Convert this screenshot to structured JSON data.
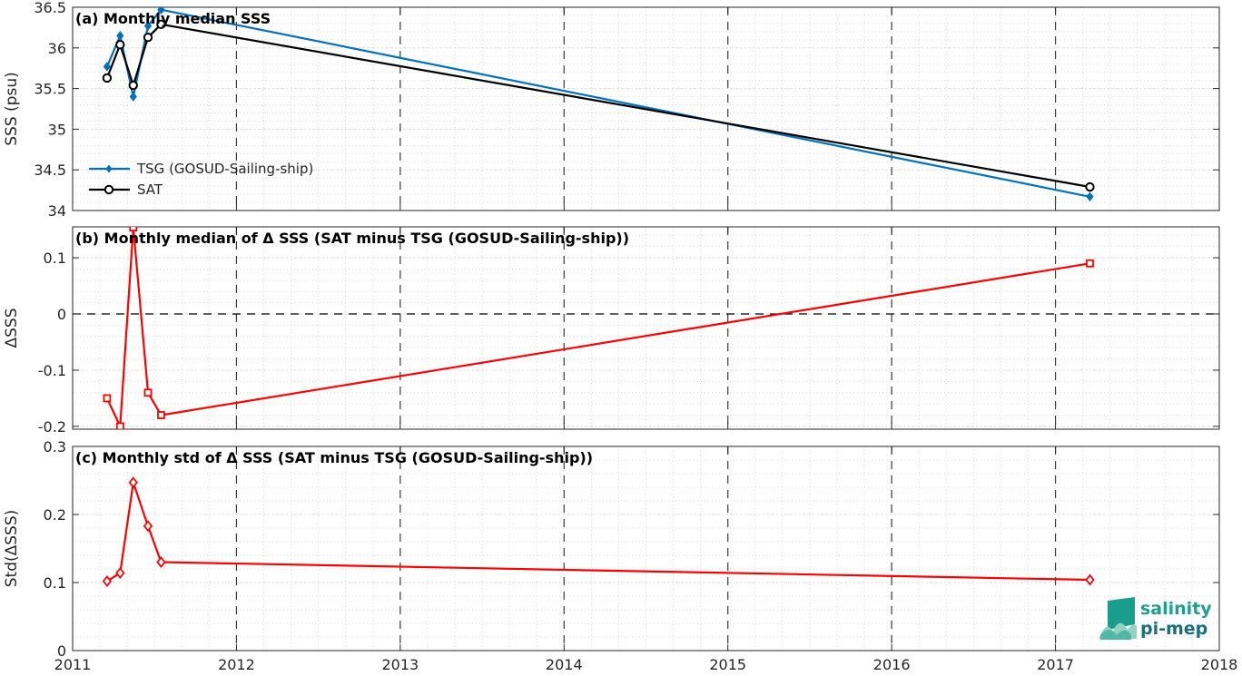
{
  "figure": {
    "logo": {
      "line1": "salinity",
      "line2": "pi-mep"
    }
  },
  "chart_data": [
    {
      "type": "line",
      "title": "(a) Monthly median SSS",
      "xlabel": "",
      "ylabel": "SSS (psu)",
      "xlim": [
        2011,
        2018
      ],
      "ylim": [
        34,
        36.5
      ],
      "xticks": [
        "2011",
        "2012",
        "2013",
        "2014",
        "2015",
        "2016",
        "2017",
        "2018"
      ],
      "yticks": [
        "34",
        "34.5",
        "35",
        "35.5",
        "36",
        "36.5"
      ],
      "grid": true,
      "legend_position": "bottom-left",
      "series": [
        {
          "name": "TSG (GOSUD-Sailing-ship)",
          "color": "#0072BD",
          "marker": "diamond-filled",
          "x": [
            2011.21,
            2011.29,
            2011.37,
            2011.46,
            2011.54,
            2017.21
          ],
          "y": [
            35.77,
            36.15,
            35.4,
            36.27,
            36.47,
            34.17
          ]
        },
        {
          "name": "SAT",
          "color": "#000000",
          "marker": "circle-open",
          "x": [
            2011.21,
            2011.29,
            2011.37,
            2011.46,
            2011.54,
            2017.21
          ],
          "y": [
            35.63,
            36.04,
            35.54,
            36.13,
            36.29,
            34.29
          ]
        }
      ]
    },
    {
      "type": "line",
      "title": "(b) Monthly median of Δ SSS (SAT minus TSG (GOSUD-Sailing-ship))",
      "xlabel": "",
      "ylabel": "ΔSSS",
      "xlim": [
        2011,
        2018
      ],
      "ylim": [
        -0.205,
        0.155
      ],
      "xticks": [],
      "yticks": [
        "-0.2",
        "-0.1",
        "0",
        "0.1"
      ],
      "grid": true,
      "zero_line": true,
      "series": [
        {
          "color": "#FF0000",
          "marker": "square-open",
          "x": [
            2011.21,
            2011.29,
            2011.37,
            2011.46,
            2011.54,
            2017.21
          ],
          "y": [
            -0.15,
            -0.2,
            0.154,
            -0.14,
            -0.18,
            0.09
          ]
        }
      ]
    },
    {
      "type": "line",
      "title": "(c) Monthly std of Δ SSS (SAT minus TSG (GOSUD-Sailing-ship))",
      "xlabel": "",
      "ylabel": "Std(ΔSSS)",
      "xlim": [
        2011,
        2018
      ],
      "ylim": [
        0,
        0.3
      ],
      "xticks": [
        "2011",
        "2012",
        "2013",
        "2014",
        "2015",
        "2016",
        "2017",
        "2018"
      ],
      "yticks": [
        "0",
        "0.1",
        "0.2",
        "0.3"
      ],
      "grid": true,
      "series": [
        {
          "color": "#FF0000",
          "marker": "diamond-open",
          "x": [
            2011.21,
            2011.29,
            2011.37,
            2011.46,
            2011.54,
            2017.21
          ],
          "y": [
            0.102,
            0.114,
            0.247,
            0.183,
            0.13,
            0.104
          ]
        }
      ]
    }
  ]
}
